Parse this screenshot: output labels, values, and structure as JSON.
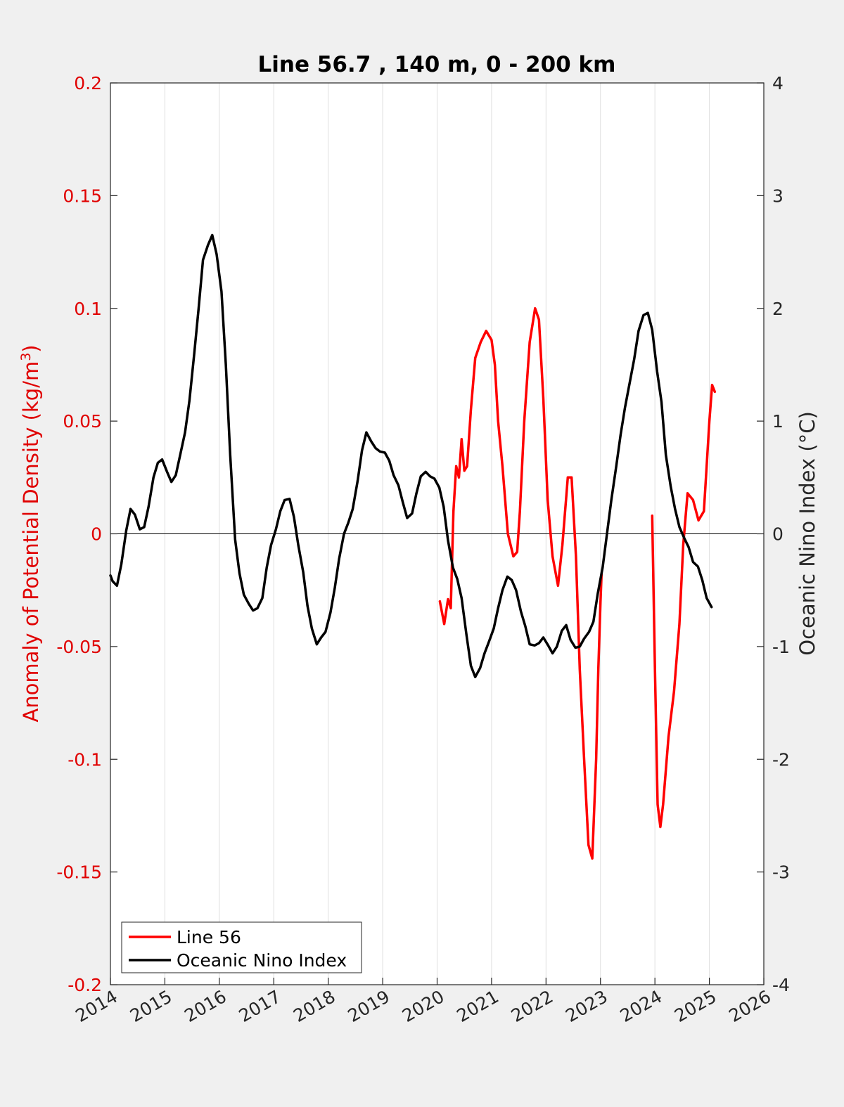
{
  "chart_data": {
    "type": "line",
    "title": "Line 56.7 , 140 m, 0 - 200 km",
    "xlabel": "",
    "xlim": [
      2014,
      2026
    ],
    "x_ticks": [
      "2014",
      "2015",
      "2016",
      "2017",
      "2018",
      "2019",
      "2020",
      "2021",
      "2022",
      "2023",
      "2024",
      "2025",
      "2026"
    ],
    "grid": "vertical",
    "y_left": {
      "label": "Anomaly of Potential Density (kg/m",
      "label_superscript": "3",
      "label_close": ")",
      "ylim": [
        -0.2,
        0.2
      ],
      "ticks": [
        "-0.2",
        "-0.15",
        "-0.1",
        "-0.05",
        "0",
        "0.05",
        "0.1",
        "0.15",
        "0.2"
      ],
      "color": "#e00000"
    },
    "y_right": {
      "label": "Oceanic Nino Index (°C)",
      "ylim": [
        -4,
        4
      ],
      "ticks": [
        "-4",
        "-3",
        "-2",
        "-1",
        "0",
        "1",
        "2",
        "3",
        "4"
      ],
      "color": "#262626"
    },
    "legend": {
      "placement": "bottom-left"
    },
    "series": [
      {
        "name": "Line 56",
        "axis": "left",
        "color": "#ff0000",
        "segments": [
          {
            "x": [
              2020.05,
              2020.13,
              2020.2,
              2020.25,
              2020.3,
              2020.35,
              2020.4,
              2020.45,
              2020.5,
              2020.55,
              2020.62,
              2020.7,
              2020.8,
              2020.9,
              2021.0,
              2021.06,
              2021.12,
              2021.2,
              2021.3,
              2021.4,
              2021.47,
              2021.52,
              2021.6,
              2021.7,
              2021.8,
              2021.87,
              2021.95,
              2022.03,
              2022.12,
              2022.22,
              2022.3,
              2022.4,
              2022.47,
              2022.55,
              2022.62,
              2022.7,
              2022.78,
              2022.85,
              2022.92,
              2022.96,
              2023.0,
              2023.02
            ],
            "y": [
              -0.03,
              -0.04,
              -0.029,
              -0.033,
              0.01,
              0.03,
              0.025,
              0.042,
              0.028,
              0.03,
              0.055,
              0.078,
              0.085,
              0.09,
              0.086,
              0.075,
              0.05,
              0.03,
              0.0,
              -0.01,
              -0.008,
              0.01,
              0.05,
              0.085,
              0.1,
              0.095,
              0.06,
              0.015,
              -0.01,
              -0.023,
              -0.005,
              0.025,
              0.025,
              -0.01,
              -0.06,
              -0.1,
              -0.138,
              -0.144,
              -0.1,
              -0.06,
              -0.03,
              -0.018
            ]
          },
          {
            "x": [
              2023.95,
              2024.0,
              2024.05,
              2024.1,
              2024.15,
              2024.25,
              2024.35,
              2024.45,
              2024.52,
              2024.6,
              2024.7,
              2024.8,
              2024.9,
              2025.0,
              2025.05,
              2025.1
            ],
            "y": [
              0.008,
              -0.06,
              -0.12,
              -0.13,
              -0.12,
              -0.09,
              -0.07,
              -0.04,
              -0.005,
              0.018,
              0.015,
              0.006,
              0.01,
              0.05,
              0.066,
              0.063
            ]
          }
        ]
      },
      {
        "name": "Oceanic Nino Index",
        "axis": "right",
        "color": "#000000",
        "segments": [
          {
            "x": [
              2014.0,
              2014.04,
              2014.12,
              2014.2,
              2014.29,
              2014.37,
              2014.45,
              2014.54,
              2014.62,
              2014.7,
              2014.79,
              2014.87,
              2014.95,
              2015.04,
              2015.12,
              2015.2,
              2015.29,
              2015.37,
              2015.45,
              2015.54,
              2015.62,
              2015.7,
              2015.79,
              2015.87,
              2015.95,
              2016.04,
              2016.12,
              2016.2,
              2016.29,
              2016.37,
              2016.45,
              2016.54,
              2016.62,
              2016.7,
              2016.79,
              2016.87,
              2016.95,
              2017.04,
              2017.12,
              2017.2,
              2017.29,
              2017.37,
              2017.45,
              2017.54,
              2017.62,
              2017.7,
              2017.79,
              2017.87,
              2017.95,
              2018.04,
              2018.12,
              2018.2,
              2018.29,
              2018.37,
              2018.45,
              2018.54,
              2018.62,
              2018.7,
              2018.79,
              2018.87,
              2018.95,
              2019.04,
              2019.12,
              2019.2,
              2019.29,
              2019.37,
              2019.45,
              2019.54,
              2019.62,
              2019.7,
              2019.79,
              2019.87,
              2019.95,
              2020.04,
              2020.12,
              2020.2,
              2020.29,
              2020.37,
              2020.45,
              2020.54,
              2020.62,
              2020.7,
              2020.79,
              2020.87,
              2020.95,
              2021.04,
              2021.12,
              2021.2,
              2021.29,
              2021.37,
              2021.45,
              2021.54,
              2021.62,
              2021.7,
              2021.79,
              2021.87,
              2021.95,
              2022.04,
              2022.12,
              2022.2,
              2022.29,
              2022.37,
              2022.45,
              2022.54,
              2022.62,
              2022.7,
              2022.79,
              2022.87,
              2022.95,
              2023.04,
              2023.12,
              2023.2,
              2023.29,
              2023.37,
              2023.45,
              2023.54,
              2023.62,
              2023.7,
              2023.79,
              2023.87,
              2023.95,
              2024.04,
              2024.12,
              2024.2,
              2024.29,
              2024.37,
              2024.45,
              2024.54,
              2024.62,
              2024.7,
              2024.79,
              2024.87,
              2024.95,
              2025.04
            ],
            "y": [
              -0.37,
              -0.42,
              -0.46,
              -0.27,
              0.03,
              0.22,
              0.17,
              0.04,
              0.06,
              0.24,
              0.5,
              0.63,
              0.66,
              0.55,
              0.46,
              0.52,
              0.72,
              0.9,
              1.18,
              1.6,
              2.0,
              2.43,
              2.56,
              2.65,
              2.48,
              2.15,
              1.5,
              0.7,
              -0.05,
              -0.35,
              -0.54,
              -0.62,
              -0.68,
              -0.66,
              -0.57,
              -0.3,
              -0.1,
              0.04,
              0.2,
              0.3,
              0.31,
              0.15,
              -0.1,
              -0.34,
              -0.64,
              -0.84,
              -0.98,
              -0.92,
              -0.87,
              -0.7,
              -0.48,
              -0.22,
              0.0,
              0.1,
              0.22,
              0.47,
              0.74,
              0.9,
              0.82,
              0.76,
              0.73,
              0.72,
              0.65,
              0.52,
              0.43,
              0.28,
              0.14,
              0.18,
              0.36,
              0.51,
              0.55,
              0.51,
              0.49,
              0.41,
              0.24,
              -0.06,
              -0.3,
              -0.4,
              -0.57,
              -0.9,
              -1.17,
              -1.27,
              -1.19,
              -1.06,
              -0.96,
              -0.84,
              -0.66,
              -0.5,
              -0.38,
              -0.41,
              -0.5,
              -0.69,
              -0.82,
              -0.98,
              -0.99,
              -0.97,
              -0.92,
              -0.99,
              -1.06,
              -1.0,
              -0.86,
              -0.81,
              -0.94,
              -1.01,
              -1.0,
              -0.93,
              -0.87,
              -0.78,
              -0.53,
              -0.3,
              0.0,
              0.3,
              0.6,
              0.88,
              1.12,
              1.35,
              1.55,
              1.8,
              1.94,
              1.96,
              1.81,
              1.44,
              1.17,
              0.7,
              0.42,
              0.22,
              0.06,
              -0.04,
              -0.12,
              -0.25,
              -0.29,
              -0.41,
              -0.57,
              -0.65
            ]
          }
        ]
      }
    ]
  }
}
